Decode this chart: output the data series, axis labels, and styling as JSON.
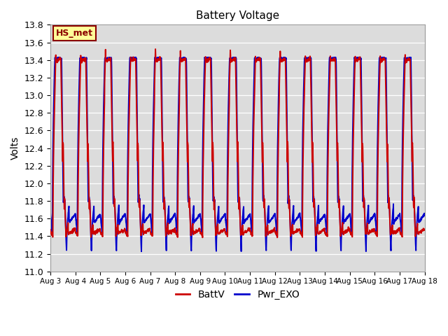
{
  "title": "Battery Voltage",
  "ylabel": "Volts",
  "ylim": [
    11.0,
    13.8
  ],
  "yticks": [
    11.0,
    11.2,
    11.4,
    11.6,
    11.8,
    12.0,
    12.2,
    12.4,
    12.6,
    12.8,
    13.0,
    13.2,
    13.4,
    13.6,
    13.8
  ],
  "x_labels": [
    "Aug 3",
    "Aug 4",
    "Aug 5",
    "Aug 6",
    "Aug 7",
    "Aug 8",
    "Aug 9",
    "Aug 10",
    "Aug 11",
    "Aug 12",
    "Aug 13",
    "Aug 14",
    "Aug 15",
    "Aug 16",
    "Aug 17",
    "Aug 18"
  ],
  "line1_color": "#cc0000",
  "line2_color": "#0000cc",
  "line1_label": "BattV",
  "line2_label": "Pwr_EXO",
  "line_width": 1.4,
  "plot_bg_color": "#dcdcdc",
  "fig_bg_color": "#ffffff",
  "grid_color": "#ffffff",
  "annotation_text": "HS_met",
  "annotation_bg": "#ffff99",
  "annotation_border": "#8b0000",
  "legend_linewidth": 2.0
}
